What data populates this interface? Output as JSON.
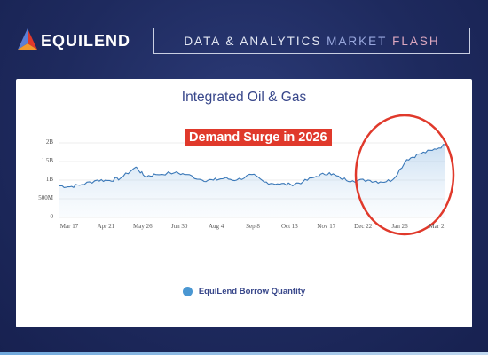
{
  "header": {
    "brand": "EQUILEND",
    "flash_words": [
      "DATA & ANALYTICS",
      "MARKET",
      "FLASH"
    ]
  },
  "colors": {
    "background": "#1e2a5e",
    "series_line": "#3a78b8",
    "annotation_red": "#e0392b",
    "legend_dot": "#4a97d2"
  },
  "chart_data": {
    "type": "area",
    "title": "Integrated Oil & Gas",
    "ytick_labels": [
      "2B",
      "1.5B",
      "1B",
      "500M",
      "0"
    ],
    "yticks": [
      2000000000,
      1500000000,
      1000000000,
      500000000,
      0
    ],
    "ylim": [
      0,
      2000000000
    ],
    "x_tick_labels": [
      "Mar 17",
      "Apr 21",
      "May 26",
      "Jun 30",
      "Aug 4",
      "Sep 8",
      "Oct 13",
      "Nov 17",
      "Dec 22",
      "Jan 26",
      "Mar 2"
    ],
    "series": [
      {
        "name": "EquiLend Borrow Quantity",
        "x": [
          "2025-03-17",
          "2025-03-27",
          "2025-04-07",
          "2025-04-21",
          "2025-05-02",
          "2025-05-12",
          "2025-05-26",
          "2025-06-03",
          "2025-06-13",
          "2025-06-30",
          "2025-07-11",
          "2025-07-25",
          "2025-08-04",
          "2025-08-14",
          "2025-08-25",
          "2025-09-08",
          "2025-09-19",
          "2025-10-01",
          "2025-10-13",
          "2025-10-24",
          "2025-11-05",
          "2025-11-17",
          "2025-11-27",
          "2025-12-08",
          "2025-12-22",
          "2026-01-02",
          "2026-01-13",
          "2026-01-26",
          "2026-02-06",
          "2026-02-18",
          "2026-03-02"
        ],
        "values": [
          850000000,
          820000000,
          880000000,
          1000000000,
          990000000,
          1050000000,
          1350000000,
          1100000000,
          1150000000,
          1200000000,
          1150000000,
          1000000000,
          1000000000,
          1050000000,
          1000000000,
          1150000000,
          950000000,
          900000000,
          880000000,
          950000000,
          1100000000,
          1200000000,
          1050000000,
          980000000,
          1000000000,
          950000000,
          1000000000,
          1550000000,
          1700000000,
          1800000000,
          1950000000
        ]
      }
    ],
    "annotation": "Demand Surge in 2026",
    "legend": "bottom-center",
    "grid": true
  }
}
